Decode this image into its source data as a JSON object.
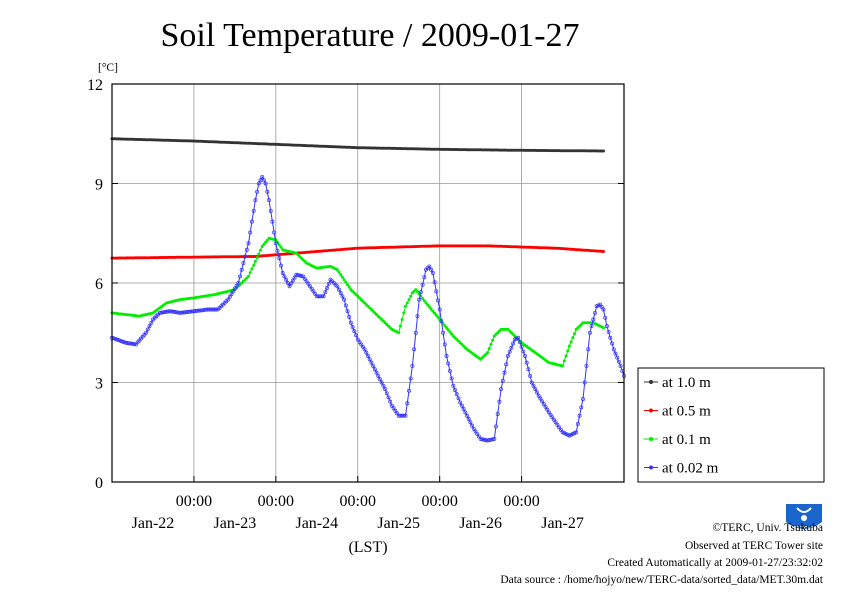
{
  "chart_data": {
    "type": "line",
    "title": "Soil Temperature / 2009-01-27",
    "y_unit": "[°C]",
    "xlabel": "(LST)",
    "ylim": [
      0,
      12
    ],
    "y_ticks": [
      "0",
      "3",
      "6",
      "9",
      "12"
    ],
    "x_tick_time": "00:00",
    "x_tick_days": [
      "Jan-22",
      "Jan-23",
      "Jan-24",
      "Jan-25",
      "Jan-26",
      "Jan-27"
    ],
    "xlim_hours": [
      0,
      144
    ],
    "grid": true,
    "legend_position": "right",
    "series": [
      {
        "name": "at 1.0 m",
        "color": "#333333",
        "points": [
          [
            0,
            10.35
          ],
          [
            24,
            10.28
          ],
          [
            48,
            10.18
          ],
          [
            72,
            10.08
          ],
          [
            96,
            10.03
          ],
          [
            120,
            10.0
          ],
          [
            144,
            9.98
          ]
        ]
      },
      {
        "name": "at 0.5 m",
        "color": "#ff0000",
        "points": [
          [
            0,
            6.75
          ],
          [
            24,
            6.78
          ],
          [
            42,
            6.8
          ],
          [
            54,
            6.9
          ],
          [
            72,
            7.05
          ],
          [
            96,
            7.12
          ],
          [
            110,
            7.12
          ],
          [
            130,
            7.05
          ],
          [
            144,
            6.95
          ]
        ]
      },
      {
        "name": "at 0.1 m",
        "color": "#00ee00",
        "points": [
          [
            0,
            5.1
          ],
          [
            8,
            5.0
          ],
          [
            12,
            5.1
          ],
          [
            16,
            5.4
          ],
          [
            20,
            5.5
          ],
          [
            24,
            5.55
          ],
          [
            30,
            5.65
          ],
          [
            36,
            5.8
          ],
          [
            40,
            6.2
          ],
          [
            44,
            7.1
          ],
          [
            46,
            7.35
          ],
          [
            48,
            7.3
          ],
          [
            50,
            7.0
          ],
          [
            54,
            6.9
          ],
          [
            57,
            6.6
          ],
          [
            60,
            6.45
          ],
          [
            64,
            6.5
          ],
          [
            66,
            6.4
          ],
          [
            70,
            5.8
          ],
          [
            74,
            5.4
          ],
          [
            78,
            5.0
          ],
          [
            82,
            4.6
          ],
          [
            84,
            4.5
          ],
          [
            86,
            5.3
          ],
          [
            88,
            5.7
          ],
          [
            89,
            5.8
          ],
          [
            92,
            5.4
          ],
          [
            96,
            4.9
          ],
          [
            100,
            4.4
          ],
          [
            104,
            4.0
          ],
          [
            108,
            3.7
          ],
          [
            110,
            3.9
          ],
          [
            112,
            4.4
          ],
          [
            114,
            4.6
          ],
          [
            116,
            4.6
          ],
          [
            120,
            4.2
          ],
          [
            124,
            3.9
          ],
          [
            128,
            3.6
          ],
          [
            132,
            3.5
          ],
          [
            134,
            4.1
          ],
          [
            136,
            4.6
          ],
          [
            138,
            4.8
          ],
          [
            141,
            4.8
          ],
          [
            144,
            4.65
          ]
        ]
      },
      {
        "name": "at 0.02 m",
        "color": "#3333ff",
        "points": [
          [
            0,
            4.35
          ],
          [
            4,
            4.2
          ],
          [
            7,
            4.15
          ],
          [
            10,
            4.5
          ],
          [
            12,
            4.9
          ],
          [
            14,
            5.1
          ],
          [
            17,
            5.15
          ],
          [
            20,
            5.1
          ],
          [
            24,
            5.15
          ],
          [
            28,
            5.2
          ],
          [
            31,
            5.2
          ],
          [
            34,
            5.5
          ],
          [
            37,
            6.0
          ],
          [
            40,
            7.2
          ],
          [
            42,
            8.5
          ],
          [
            43,
            9.0
          ],
          [
            44,
            9.2
          ],
          [
            45,
            9.0
          ],
          [
            46,
            8.5
          ],
          [
            48,
            7.2
          ],
          [
            50,
            6.3
          ],
          [
            52,
            5.9
          ],
          [
            54,
            6.25
          ],
          [
            56,
            6.2
          ],
          [
            58,
            5.9
          ],
          [
            60,
            5.6
          ],
          [
            62,
            5.6
          ],
          [
            64,
            6.1
          ],
          [
            66,
            5.9
          ],
          [
            68,
            5.5
          ],
          [
            70,
            4.8
          ],
          [
            72,
            4.3
          ],
          [
            74,
            4.0
          ],
          [
            76,
            3.6
          ],
          [
            78,
            3.2
          ],
          [
            80,
            2.8
          ],
          [
            82,
            2.3
          ],
          [
            84,
            2.0
          ],
          [
            86,
            2.0
          ],
          [
            88,
            3.5
          ],
          [
            90,
            5.5
          ],
          [
            92,
            6.4
          ],
          [
            93,
            6.5
          ],
          [
            94,
            6.3
          ],
          [
            96,
            5.2
          ],
          [
            98,
            3.8
          ],
          [
            100,
            2.9
          ],
          [
            102,
            2.4
          ],
          [
            104,
            2.0
          ],
          [
            106,
            1.6
          ],
          [
            108,
            1.3
          ],
          [
            110,
            1.25
          ],
          [
            112,
            1.3
          ],
          [
            114,
            2.8
          ],
          [
            116,
            3.8
          ],
          [
            118,
            4.3
          ],
          [
            119,
            4.35
          ],
          [
            121,
            3.8
          ],
          [
            123,
            3.0
          ],
          [
            125,
            2.6
          ],
          [
            128,
            2.1
          ],
          [
            130,
            1.8
          ],
          [
            132,
            1.5
          ],
          [
            134,
            1.4
          ],
          [
            136,
            1.5
          ],
          [
            138,
            2.5
          ],
          [
            140,
            4.5
          ],
          [
            142,
            5.3
          ],
          [
            143,
            5.35
          ],
          [
            144,
            5.2
          ],
          [
            145,
            4.7
          ],
          [
            147,
            4.0
          ],
          [
            149,
            3.5
          ],
          [
            150,
            3.2
          ]
        ]
      }
    ]
  },
  "footer": {
    "copyright": "©TERC, Univ. Tsukuba",
    "observed": "Observed at TERC Tower site",
    "created": "Created Automatically at 2009-01-27/23:32:02",
    "source": "Data source : /home/hojyo/new/TERC-data/sorted_data/MET.30m.dat"
  },
  "logo": {
    "text": "TERC",
    "color": "#1a66cc"
  }
}
